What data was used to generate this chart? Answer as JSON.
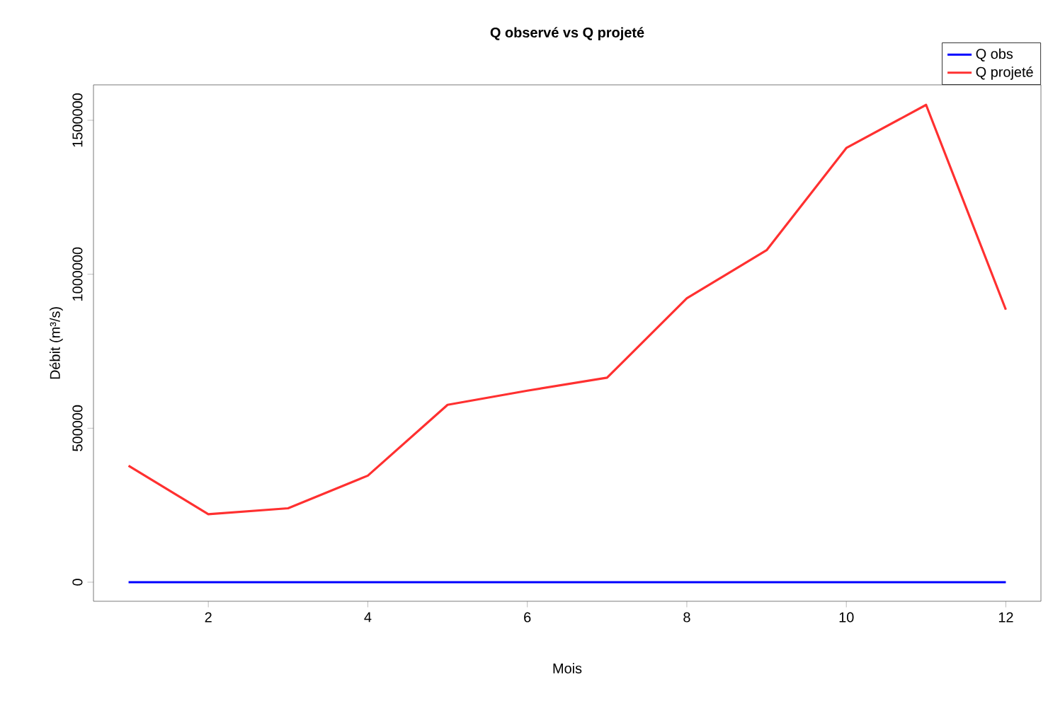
{
  "chart_data": {
    "type": "line",
    "title": "Q observé vs Q projeté",
    "xlabel": "Mois",
    "ylabel": "Débit (m³/s)",
    "x": [
      1,
      2,
      3,
      4,
      5,
      6,
      7,
      8,
      9,
      10,
      11,
      12
    ],
    "series": [
      {
        "name": "Q obs",
        "color": "#0000ff",
        "values": [
          0,
          0,
          0,
          0,
          0,
          0,
          0,
          0,
          0,
          0,
          0,
          0
        ]
      },
      {
        "name": "Q projeté",
        "color": "#ff3030",
        "values": [
          378000,
          221000,
          240000,
          346000,
          576000,
          622000,
          664000,
          922000,
          1078000,
          1410000,
          1550000,
          885000
        ]
      }
    ],
    "xlim": [
      0.56,
      12.44
    ],
    "ylim": [
      -62000,
      1615000
    ],
    "xticks": [
      2,
      4,
      6,
      8,
      10,
      12
    ],
    "yticks": [
      0,
      500000,
      1000000,
      1500000
    ],
    "legend": "top right",
    "marker": "none",
    "line_style": "solid",
    "grid": false
  }
}
